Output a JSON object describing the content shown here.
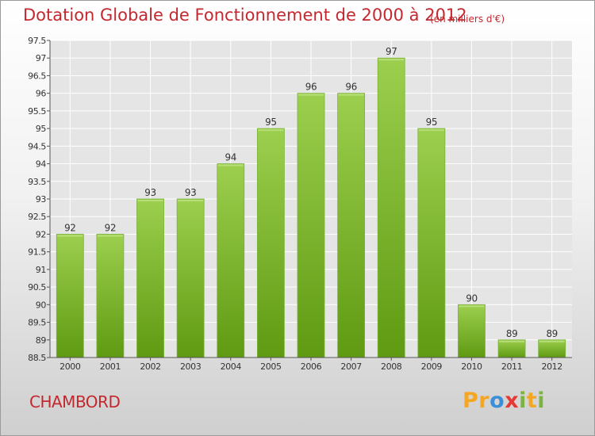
{
  "title": "Dotation Globale de Fonctionnement de 2000 à 2012",
  "subtitle": "(en milliers d'€)",
  "commune": "CHAMBORD",
  "logo": {
    "text": "Proxiti",
    "letters": [
      {
        "char": "P",
        "color": "#f5a623"
      },
      {
        "char": "r",
        "color": "#f5a623"
      },
      {
        "char": "o",
        "color": "#3a8fd8"
      },
      {
        "char": "x",
        "color": "#e53935"
      },
      {
        "char": "i",
        "color": "#7cb342"
      },
      {
        "char": "t",
        "color": "#f5a623"
      },
      {
        "char": "i",
        "color": "#7cb342"
      }
    ]
  },
  "colors": {
    "bar_top": "#9ccf4e",
    "bar_bottom": "#5f9a12",
    "title": "#c4282f",
    "grid": "#ffffff"
  },
  "chart_data": {
    "type": "bar",
    "categories": [
      "2000",
      "2001",
      "2002",
      "2003",
      "2004",
      "2005",
      "2006",
      "2007",
      "2008",
      "2009",
      "2010",
      "2011",
      "2012"
    ],
    "values": [
      92,
      92,
      93,
      93,
      94,
      95,
      96,
      96,
      97,
      95,
      90,
      89,
      89
    ],
    "data_labels": [
      "92",
      "92",
      "93",
      "93",
      "94",
      "95",
      "96",
      "96",
      "97",
      "95",
      "90",
      "89",
      "89"
    ],
    "title": "Dotation Globale de Fonctionnement de 2000 à 2012",
    "xlabel": "",
    "ylabel": "",
    "ylim": [
      88.5,
      97.5
    ],
    "yticks": [
      88.5,
      89,
      89.5,
      90,
      90.5,
      91,
      91.5,
      92,
      92.5,
      93,
      93.5,
      94,
      94.5,
      95,
      95.5,
      96,
      96.5,
      97,
      97.5
    ],
    "ytick_labels": [
      "88.5",
      "89",
      "89.5",
      "90",
      "90.5",
      "91",
      "91.5",
      "92",
      "92.5",
      "93",
      "93.5",
      "94",
      "94.5",
      "95",
      "95.5",
      "96",
      "96.5",
      "97",
      "97.5"
    ],
    "grid": true
  }
}
